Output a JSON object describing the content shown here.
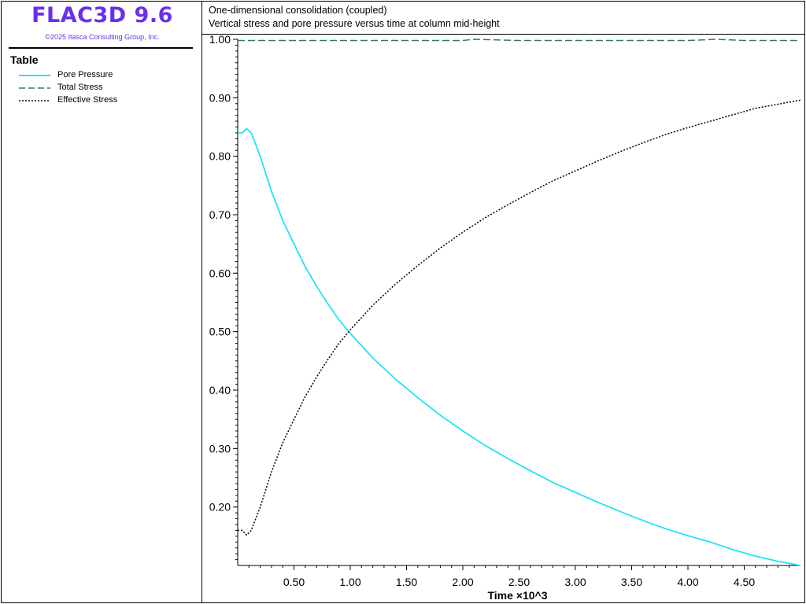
{
  "app": {
    "brand": "FLAC3D 9.6",
    "copyright": "©2025 Itasca Consulting Group, Inc."
  },
  "legend": {
    "title": "Table",
    "items": [
      {
        "label": "Pore Pressure",
        "color": "#22e3f3",
        "style": "solid"
      },
      {
        "label": "Total Stress",
        "color": "#2e7d5b",
        "style": "dashed"
      },
      {
        "label": "Effective Stress",
        "color": "#000000",
        "style": "dotted"
      }
    ]
  },
  "chart": {
    "title": "One-dimensional consolidation (coupled)",
    "subtitle": "Vertical stress and pore pressure versus time at column mid-height"
  },
  "chart_data": {
    "type": "line",
    "title": "One-dimensional consolidation (coupled)",
    "subtitle": "Vertical stress and pore pressure versus time at column mid-height",
    "xlabel": "Time ×10^3",
    "ylabel": "",
    "xlim": [
      0,
      5
    ],
    "ylim": [
      0.1,
      1.0
    ],
    "xticks": [
      "0.50",
      "1.00",
      "1.50",
      "2.00",
      "2.50",
      "3.00",
      "3.50",
      "4.00",
      "4.50"
    ],
    "yticks": [
      "0.20",
      "0.30",
      "0.40",
      "0.50",
      "0.60",
      "0.70",
      "0.80",
      "0.90",
      "1.00"
    ],
    "grid": false,
    "legend_position": "left-panel",
    "series": [
      {
        "name": "Pore Pressure",
        "color": "#22e3f3",
        "style": "solid",
        "x": [
          0,
          0.04,
          0.08,
          0.12,
          0.2,
          0.3,
          0.4,
          0.5,
          0.6,
          0.7,
          0.8,
          0.9,
          1.0,
          1.2,
          1.4,
          1.6,
          1.8,
          2.0,
          2.2,
          2.4,
          2.6,
          2.8,
          3.0,
          3.2,
          3.4,
          3.6,
          3.8,
          4.0,
          4.2,
          4.4,
          4.6,
          4.8,
          5.0
        ],
        "y": [
          0.84,
          0.84,
          0.847,
          0.84,
          0.8,
          0.74,
          0.69,
          0.65,
          0.611,
          0.578,
          0.548,
          0.52,
          0.497,
          0.455,
          0.419,
          0.387,
          0.357,
          0.33,
          0.305,
          0.283,
          0.262,
          0.242,
          0.225,
          0.208,
          0.192,
          0.177,
          0.163,
          0.151,
          0.14,
          0.127,
          0.116,
          0.107,
          0.1
        ]
      },
      {
        "name": "Total Stress",
        "color": "#2e7d5b",
        "style": "dashed",
        "x": [
          0,
          0.5,
          1.0,
          1.5,
          2.0,
          2.1,
          2.5,
          3.0,
          3.5,
          4.0,
          4.25,
          4.5,
          5.0
        ],
        "y": [
          0.998,
          0.998,
          0.998,
          0.998,
          0.998,
          1.0,
          0.998,
          0.998,
          0.998,
          0.998,
          1.0,
          0.998,
          0.998
        ]
      },
      {
        "name": "Effective Stress",
        "color": "#000000",
        "style": "dotted",
        "x": [
          0,
          0.04,
          0.08,
          0.12,
          0.2,
          0.3,
          0.4,
          0.5,
          0.6,
          0.7,
          0.8,
          0.9,
          1.0,
          1.2,
          1.4,
          1.6,
          1.8,
          2.0,
          2.2,
          2.4,
          2.6,
          2.8,
          3.0,
          3.2,
          3.4,
          3.6,
          3.8,
          4.0,
          4.2,
          4.4,
          4.6,
          4.8,
          5.0
        ],
        "y": [
          0.16,
          0.16,
          0.152,
          0.16,
          0.2,
          0.26,
          0.31,
          0.35,
          0.389,
          0.422,
          0.452,
          0.48,
          0.503,
          0.545,
          0.581,
          0.613,
          0.643,
          0.67,
          0.695,
          0.717,
          0.738,
          0.758,
          0.775,
          0.792,
          0.808,
          0.823,
          0.837,
          0.849,
          0.86,
          0.871,
          0.882,
          0.889,
          0.896
        ]
      }
    ]
  }
}
